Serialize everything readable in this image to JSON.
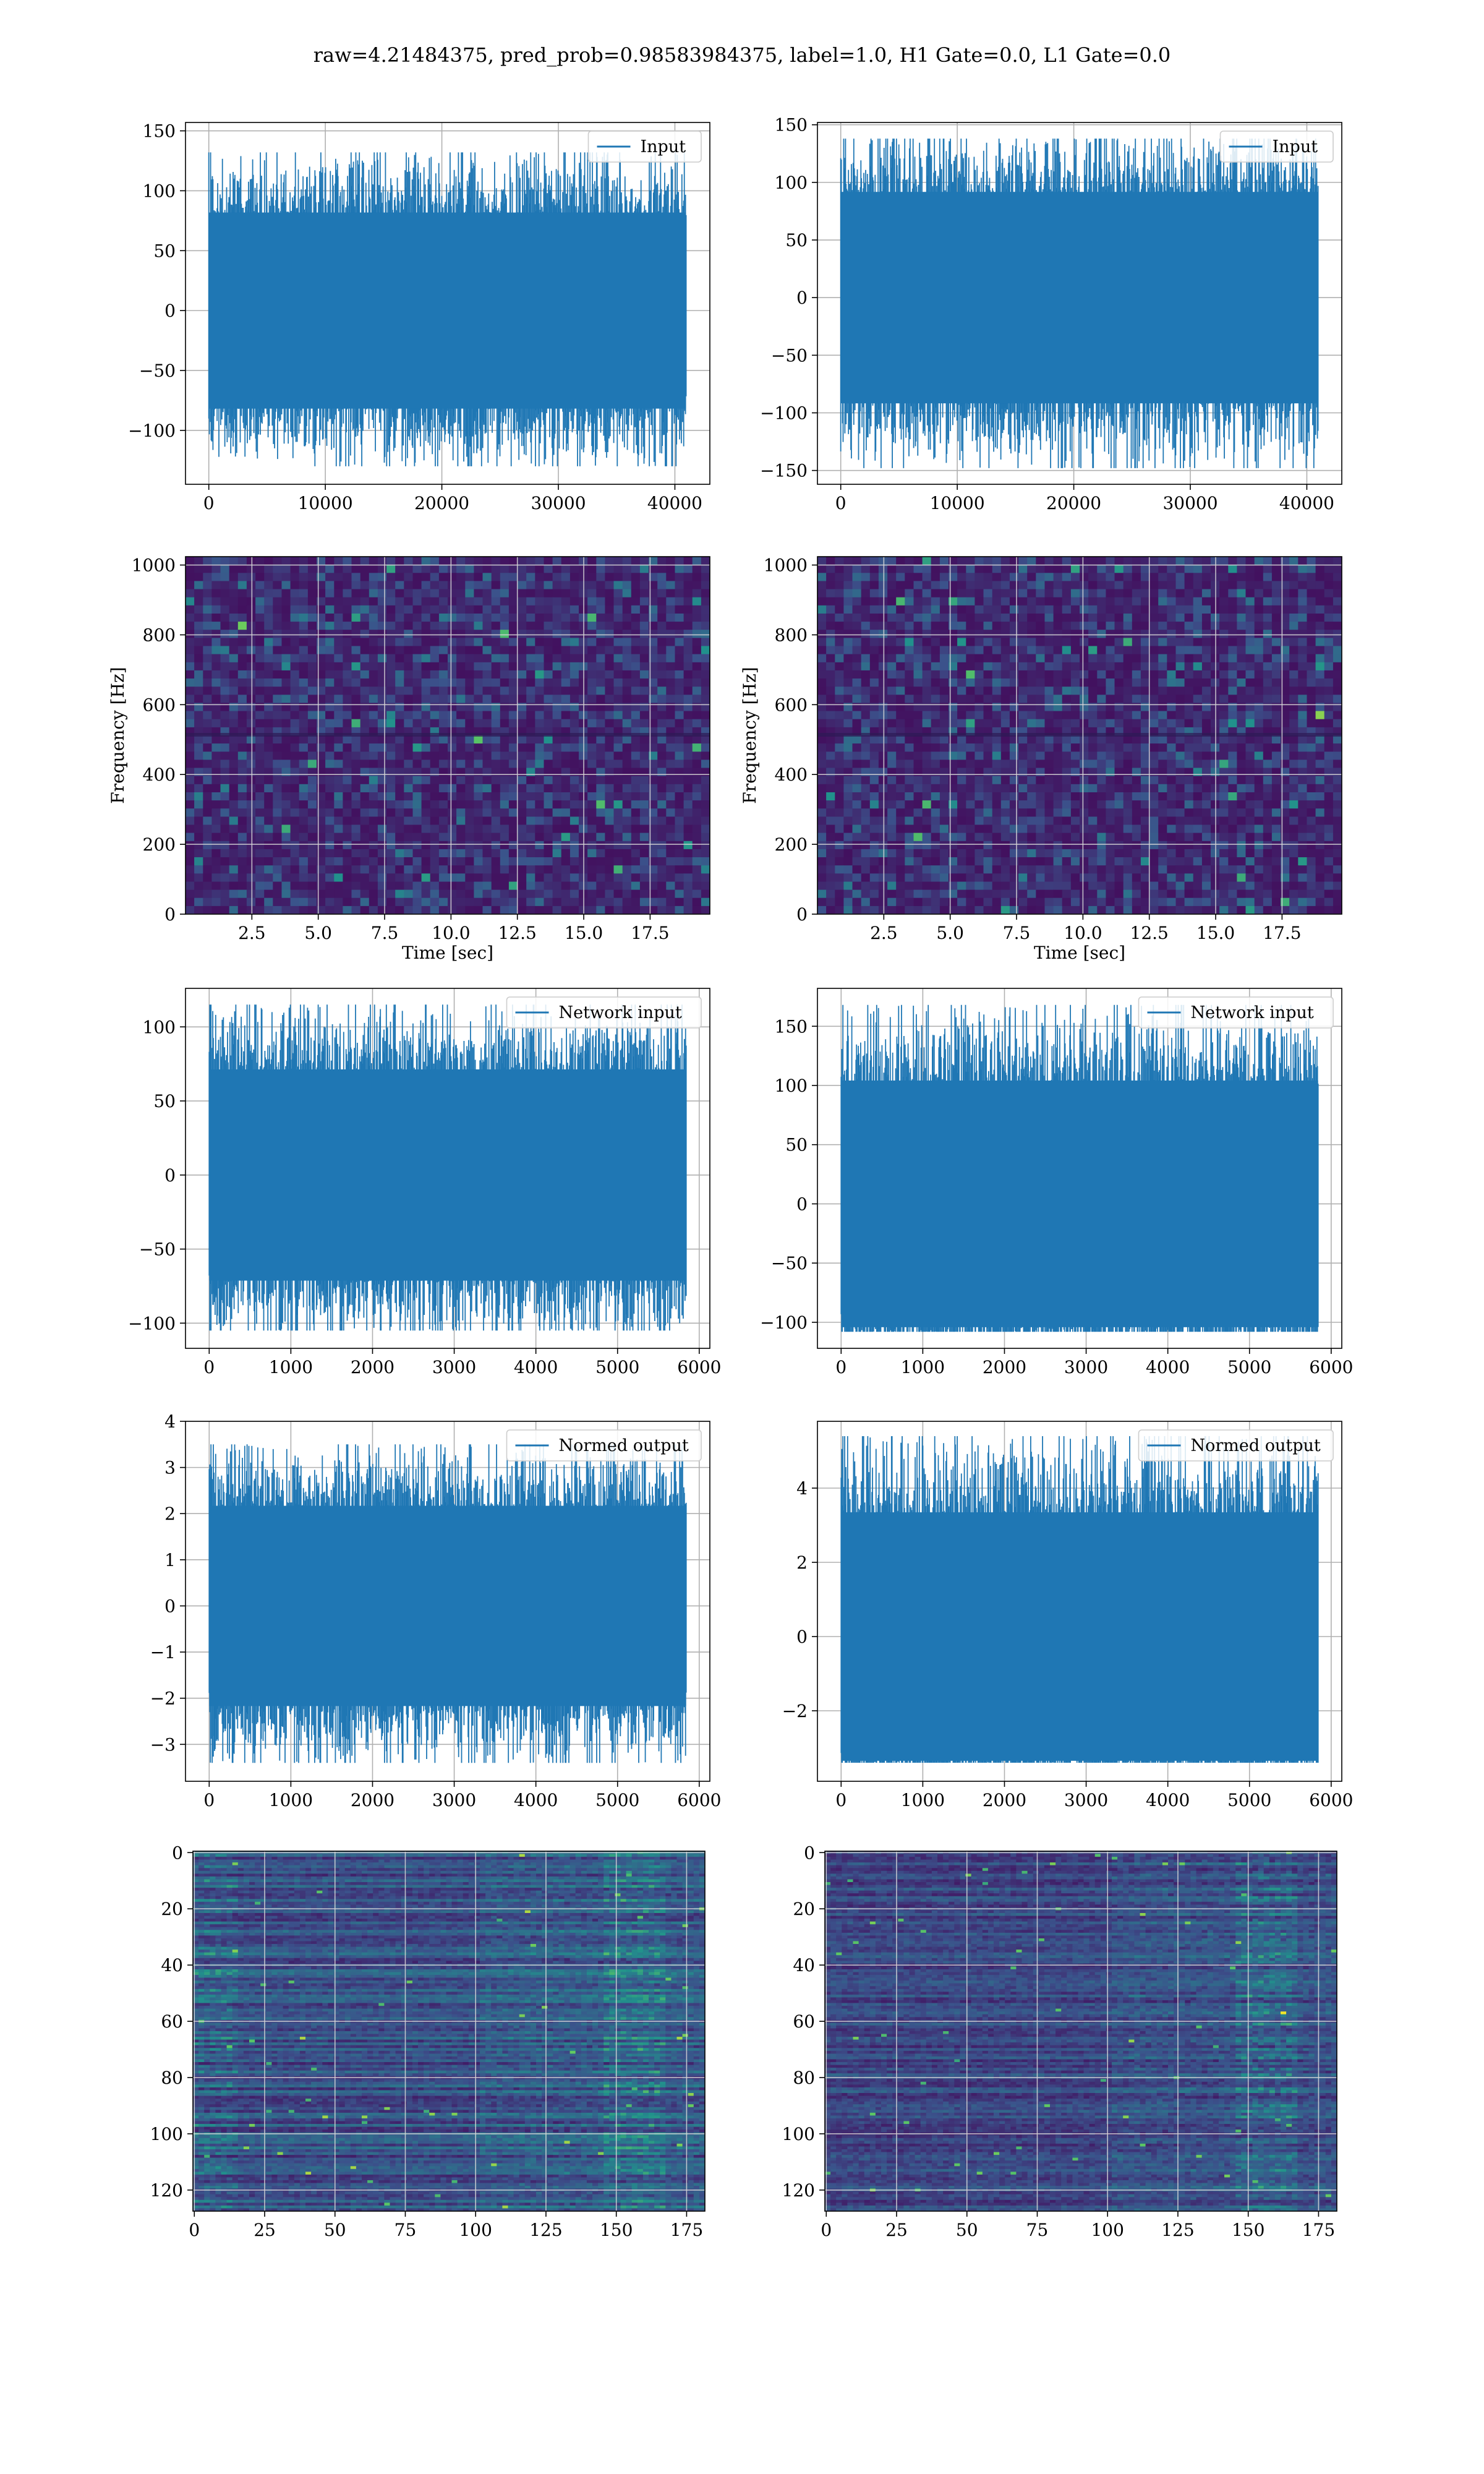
{
  "figure": {
    "title": "raw=4.21484375, pred_prob=0.98583984375, label=1.0, H1 Gate=0.0, L1 Gate=0.0"
  },
  "colors": {
    "series": "#1f77b4",
    "heatmap_low": "#440154",
    "heatmap_mid": "#21918c",
    "heatmap_high": "#fde725"
  },
  "chart_data": [
    {
      "id": "h1-input",
      "type": "line",
      "legend": [
        "Input"
      ],
      "legend_loc": "upper right",
      "series": [
        {
          "name": "Input",
          "n_points": 40960,
          "approx_range": [
            -130,
            132
          ]
        }
      ],
      "xlim": [
        -2000,
        43000
      ],
      "ylim": [
        -145,
        157
      ],
      "xticks": [
        0,
        10000,
        20000,
        30000,
        40000
      ],
      "yticks": [
        -100,
        -50,
        0,
        50,
        100,
        150
      ],
      "grid": true
    },
    {
      "id": "l1-input",
      "type": "line",
      "legend": [
        "Input"
      ],
      "legend_loc": "upper right",
      "series": [
        {
          "name": "Input",
          "n_points": 40960,
          "approx_range": [
            -148,
            138
          ]
        }
      ],
      "xlim": [
        -2000,
        43000
      ],
      "ylim": [
        -162,
        152
      ],
      "xticks": [
        0,
        10000,
        20000,
        30000,
        40000
      ],
      "yticks": [
        -150,
        -100,
        -50,
        0,
        50,
        100,
        150
      ],
      "grid": true
    },
    {
      "id": "h1-spectrogram",
      "type": "heatmap",
      "xlabel": "Time [sec]",
      "ylabel": "Frequency [Hz]",
      "xlim": [
        0,
        19.75
      ],
      "ylim": [
        0,
        1024
      ],
      "xticks": [
        "2.5",
        "5.0",
        "7.5",
        "10.0",
        "12.5",
        "15.0",
        "17.5"
      ],
      "yticks": [
        0,
        200,
        400,
        600,
        800,
        1000
      ],
      "grid": true
    },
    {
      "id": "l1-spectrogram",
      "type": "heatmap",
      "xlabel": "Time [sec]",
      "ylabel": "Frequency [Hz]",
      "xlim": [
        0,
        19.75
      ],
      "ylim": [
        0,
        1024
      ],
      "xticks": [
        "2.5",
        "5.0",
        "7.5",
        "10.0",
        "12.5",
        "15.0",
        "17.5"
      ],
      "yticks": [
        0,
        200,
        400,
        600,
        800,
        1000
      ],
      "grid": true
    },
    {
      "id": "h1-network-input",
      "type": "line",
      "legend": [
        "Network input"
      ],
      "legend_loc": "upper right",
      "series": [
        {
          "name": "Network input",
          "n_points": 5840,
          "approx_range": [
            -105,
            115
          ]
        }
      ],
      "xlim": [
        -290,
        6130
      ],
      "ylim": [
        -117,
        126
      ],
      "xticks": [
        0,
        1000,
        2000,
        3000,
        4000,
        5000,
        6000
      ],
      "yticks": [
        -100,
        -50,
        0,
        50,
        100
      ],
      "grid": true
    },
    {
      "id": "l1-network-input",
      "type": "line",
      "legend": [
        "Network input"
      ],
      "legend_loc": "upper right",
      "series": [
        {
          "name": "Network input",
          "n_points": 5840,
          "approx_range": [
            -108,
            168
          ]
        }
      ],
      "xlim": [
        -290,
        6130
      ],
      "ylim": [
        -122,
        182
      ],
      "xticks": [
        0,
        1000,
        2000,
        3000,
        4000,
        5000,
        6000
      ],
      "yticks": [
        -100,
        -50,
        0,
        50,
        100,
        150
      ],
      "grid": true
    },
    {
      "id": "h1-normed-output",
      "type": "line",
      "legend": [
        "Normed output"
      ],
      "legend_loc": "upper right",
      "series": [
        {
          "name": "Normed output",
          "n_points": 5840,
          "approx_range": [
            -3.4,
            3.5
          ]
        }
      ],
      "xlim": [
        -290,
        6130
      ],
      "ylim": [
        -3.8,
        4.0
      ],
      "xticks": [
        0,
        1000,
        2000,
        3000,
        4000,
        5000,
        6000
      ],
      "yticks": [
        -3,
        -2,
        -1,
        0,
        1,
        2,
        3,
        4
      ],
      "grid": true
    },
    {
      "id": "l1-normed-output",
      "type": "line",
      "legend": [
        "Normed output"
      ],
      "legend_loc": "upper right",
      "series": [
        {
          "name": "Normed output",
          "n_points": 5840,
          "approx_range": [
            -3.4,
            5.4
          ]
        }
      ],
      "xlim": [
        -290,
        6130
      ],
      "ylim": [
        -3.9,
        5.8
      ],
      "xticks": [
        0,
        1000,
        2000,
        3000,
        4000,
        5000,
        6000
      ],
      "yticks": [
        -2,
        0,
        2,
        4
      ],
      "grid": true
    },
    {
      "id": "h1-feature-map",
      "type": "heatmap",
      "xlim": [
        -0.5,
        181.5
      ],
      "ylim": [
        127.5,
        -0.5
      ],
      "xticks": [
        0,
        25,
        50,
        75,
        100,
        125,
        150,
        175
      ],
      "yticks": [
        0,
        20,
        40,
        60,
        80,
        100,
        120
      ],
      "grid": true
    },
    {
      "id": "l1-feature-map",
      "type": "heatmap",
      "xlim": [
        -0.5,
        181.5
      ],
      "ylim": [
        127.5,
        -0.5
      ],
      "xticks": [
        0,
        25,
        50,
        75,
        100,
        125,
        150,
        175
      ],
      "yticks": [
        0,
        20,
        40,
        60,
        80,
        100,
        120
      ],
      "grid": true
    }
  ]
}
